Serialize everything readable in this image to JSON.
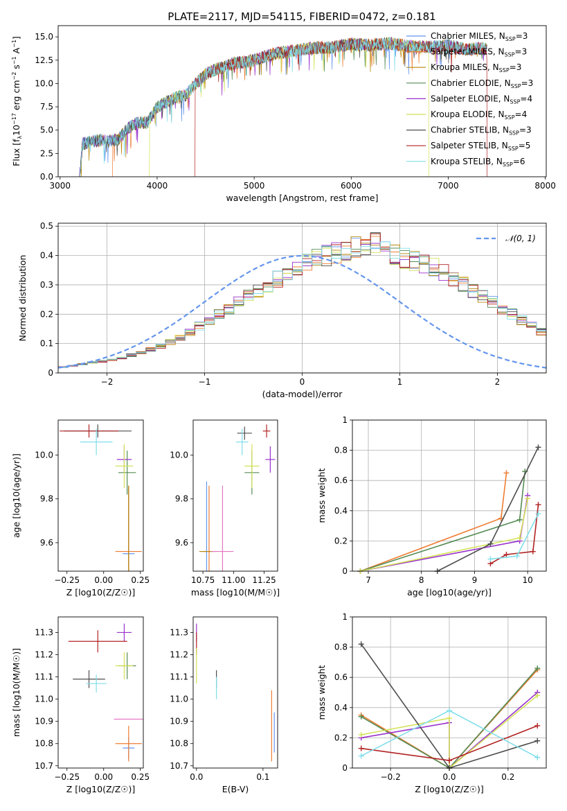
{
  "title": "PLATE=2117, MJD=54115, FIBERID=0472, z=0.181",
  "series": [
    {
      "name": "Chabrier MILES, N",
      "nssp": "3",
      "color": "#6495ed"
    },
    {
      "name": "Salpeter MILES, N",
      "nssp": "3",
      "color": "#ee7c31"
    },
    {
      "name": "Kroupa MILES, N",
      "nssp": "3",
      "color": "#b8860b"
    },
    {
      "name": "Chabrier ELODIE, N",
      "nssp": "3",
      "color": "#548b54"
    },
    {
      "name": "Salpeter ELODIE, N",
      "nssp": "4",
      "color": "#9932cc"
    },
    {
      "name": "Kroupa ELODIE, N",
      "nssp": "4",
      "color": "#d4e157"
    },
    {
      "name": "Chabrier STELIB, N",
      "nssp": "3",
      "color": "#4d4d4d"
    },
    {
      "name": "Salpeter STELIB, N",
      "nssp": "5",
      "color": "#b22222"
    },
    {
      "name": "Kroupa STELIB, N",
      "nssp": "6",
      "color": "#80deea"
    }
  ],
  "chart_data": [
    {
      "type": "line",
      "title": "PLATE=2117, MJD=54115, FIBERID=0472, z=0.181",
      "xlabel": "wavelength [Angstrom, rest frame]",
      "ylabel": "Flux [f_λ 10^-17 erg cm^-2 s^-1 A^-1]",
      "xlim": [
        2980,
        8010
      ],
      "ylim": [
        0,
        16.2
      ],
      "xticks": [
        3000,
        4000,
        5000,
        6000,
        7000,
        8000
      ],
      "yticks": [
        0.0,
        2.5,
        5.0,
        7.5,
        10.0,
        12.5,
        15.0
      ],
      "ytick_labels": [
        "0.0",
        "2.5",
        "5.0",
        "7.5",
        "10.0",
        "12.5",
        "15.0"
      ],
      "spectrum_envelope": {
        "x": [
          3200,
          3230,
          3300,
          3400,
          3500,
          3600,
          3700,
          3800,
          3900,
          4000,
          4100,
          4200,
          4300,
          4400,
          4500,
          4600,
          4700,
          4800,
          4900,
          5000,
          5200,
          5400,
          5600,
          5800,
          6000,
          6200,
          6400,
          6600,
          6800,
          7000,
          7200,
          7300,
          7400
        ],
        "y": [
          0,
          3.5,
          3.7,
          3.9,
          3.8,
          4.0,
          5.2,
          5.8,
          5.8,
          7.5,
          8.0,
          8.5,
          8.8,
          10.0,
          11.0,
          11.5,
          11.8,
          12.2,
          12.3,
          12.5,
          13.2,
          13.5,
          13.8,
          13.9,
          14.2,
          14.1,
          14.3,
          14.0,
          13.9,
          14.1,
          13.6,
          13.8,
          13.7
        ]
      },
      "series_start_wavelength": {
        "Salpeter MILES": 3540,
        "Kroupa ELODIE": 3920,
        "Salpeter STELIB": 4390
      },
      "series_end_wavelength": {
        "Kroupa ELODIE": 6800,
        "Salpeter STELIB": 7400
      }
    },
    {
      "type": "bar",
      "subtype": "step-histogram",
      "xlabel": "(data-model)/error",
      "ylabel": "Normed distribution",
      "xlim": [
        -2.5,
        2.5
      ],
      "ylim": [
        0,
        0.51
      ],
      "xticks": [
        -2,
        -1,
        0,
        1,
        2
      ],
      "xtick_labels": [
        "−2",
        "−1",
        "0",
        "1",
        "2"
      ],
      "yticks": [
        0.0,
        0.1,
        0.2,
        0.3,
        0.4,
        0.5
      ],
      "bin_width": 0.1,
      "approx_bin_values": [
        0.02,
        0.025,
        0.03,
        0.035,
        0.04,
        0.045,
        0.05,
        0.06,
        0.07,
        0.08,
        0.09,
        0.105,
        0.12,
        0.14,
        0.16,
        0.18,
        0.2,
        0.22,
        0.24,
        0.26,
        0.28,
        0.3,
        0.32,
        0.34,
        0.36,
        0.375,
        0.39,
        0.4,
        0.41,
        0.42,
        0.43,
        0.44,
        0.45,
        0.42,
        0.4,
        0.39,
        0.38,
        0.37,
        0.36,
        0.34,
        0.32,
        0.3,
        0.28,
        0.26,
        0.24,
        0.22,
        0.2,
        0.18,
        0.16,
        0.14
      ],
      "legend": "𝒩(0, 1)",
      "reference_curve": "Gaussian N(0,1)"
    },
    {
      "type": "scatter",
      "subtype": "errorbar",
      "xlabel": "Z [log10(Z/Z☉)]",
      "ylabel": "age  [log10(age/yr)]",
      "xlim": [
        -0.31,
        0.27
      ],
      "ylim": [
        9.47,
        10.16
      ],
      "xticks": [
        -0.25,
        0.0,
        0.25
      ],
      "xtick_labels": [
        "−0.25",
        "0.00",
        "0.25"
      ],
      "yticks": [
        9.6,
        9.8,
        10.0
      ],
      "ytick_labels": [
        "9.6",
        "9.8",
        "10.0"
      ],
      "points": [
        {
          "series": "Chabrier MILES",
          "x": 0.17,
          "y": 9.55,
          "xerr": 0.04,
          "yerr": 0.3
        },
        {
          "series": "Salpeter MILES",
          "x": 0.17,
          "y": 9.56,
          "xerr": 0.09,
          "yerr": 0.3
        },
        {
          "series": "Kroupa MILES",
          "x": 0.17,
          "y": 9.56,
          "xerr": 0.0,
          "yerr": 0.3
        },
        {
          "series": "Chabrier ELODIE",
          "x": 0.16,
          "y": 9.92,
          "xerr": 0.06,
          "yerr": 0.1
        },
        {
          "series": "Salpeter ELODIE",
          "x": 0.14,
          "y": 9.98,
          "xerr": 0.05,
          "yerr": 0.06
        },
        {
          "series": "Kroupa ELODIE",
          "x": 0.14,
          "y": 9.95,
          "xerr": 0.06,
          "yerr": 0.1
        },
        {
          "series": "Chabrier STELIB",
          "x": -0.04,
          "y": 10.11,
          "xerr": 0.23,
          "yerr": 0.03
        },
        {
          "series": "Salpeter STELIB",
          "x": -0.1,
          "y": 10.11,
          "xerr": 0.2,
          "yerr": 0.03
        },
        {
          "series": "Kroupa STELIB",
          "x": -0.05,
          "y": 10.06,
          "xerr": 0.11,
          "yerr": 0.06
        }
      ]
    },
    {
      "type": "scatter",
      "subtype": "errorbar",
      "xlabel": "mass [log10(M/M☉)]",
      "ylabel": "",
      "xlim": [
        10.67,
        11.36
      ],
      "ylim": [
        9.47,
        10.16
      ],
      "xticks": [
        10.75,
        11.0,
        11.25
      ],
      "xtick_labels": [
        "10.75",
        "11.00",
        "11.25"
      ],
      "yticks": [
        9.6,
        9.8,
        10.0
      ],
      "ytick_labels": [
        "9.6",
        "9.8",
        "10.0"
      ],
      "points": [
        {
          "series": "Chabrier MILES",
          "x": 10.78,
          "y": 9.56,
          "xerr": 0.03,
          "yerr": 0.32
        },
        {
          "series": "Salpeter MILES",
          "x": 10.8,
          "y": 9.56,
          "xerr": 0.06,
          "yerr": 0.3
        },
        {
          "series": "Kroupa MILES",
          "x": 10.78,
          "y": 9.56,
          "xerr": 0.06,
          "yerr": 0.0
        },
        {
          "series": "Chabrier ELODIE",
          "x": 11.15,
          "y": 9.92,
          "xerr": 0.06,
          "yerr": 0.1
        },
        {
          "series": "Salpeter ELODIE",
          "x": 11.3,
          "y": 9.98,
          "xerr": 0.04,
          "yerr": 0.06
        },
        {
          "series": "Kroupa ELODIE",
          "x": 11.15,
          "y": 9.95,
          "xerr": 0.06,
          "yerr": 0.1
        },
        {
          "series": "Chabrier STELIB",
          "x": 11.09,
          "y": 10.1,
          "xerr": 0.06,
          "yerr": 0.03
        },
        {
          "series": "Salpeter STELIB",
          "x": 11.27,
          "y": 10.11,
          "xerr": 0.03,
          "yerr": 0.03
        },
        {
          "series": "Kroupa STELIB",
          "x": 11.07,
          "y": 10.06,
          "xerr": 0.05,
          "yerr": 0.06
        },
        {
          "series": "pink",
          "x": 10.91,
          "y": 9.56,
          "xerr": 0.09,
          "yerr": 0.3
        }
      ]
    },
    {
      "type": "line",
      "xlabel": "age  [log10(age/yr)]",
      "ylabel": "mass weight",
      "xlim": [
        6.7,
        10.35
      ],
      "ylim": [
        0,
        1.0
      ],
      "xticks": [
        7,
        8,
        9,
        10
      ],
      "yticks": [
        0.0,
        0.2,
        0.4,
        0.6,
        0.8,
        1.0
      ],
      "lines": [
        {
          "series": "Salpeter MILES",
          "x": [
            6.85,
            9.5,
            9.6
          ],
          "y": [
            0.0,
            0.35,
            0.65
          ]
        },
        {
          "series": "Chabrier ELODIE",
          "x": [
            6.85,
            9.85,
            9.95
          ],
          "y": [
            0.0,
            0.34,
            0.66
          ]
        },
        {
          "series": "Salpeter ELODIE",
          "x": [
            6.85,
            9.85,
            10.0
          ],
          "y": [
            0.0,
            0.2,
            0.5
          ]
        },
        {
          "series": "Kroupa ELODIE",
          "x": [
            6.85,
            9.85,
            10.0
          ],
          "y": [
            0.0,
            0.22,
            0.48
          ]
        },
        {
          "series": "Chabrier STELIB",
          "x": [
            8.3,
            9.3,
            10.2
          ],
          "y": [
            0.0,
            0.18,
            0.82
          ]
        },
        {
          "series": "Salpeter STELIB",
          "x": [
            9.3,
            9.6,
            10.1,
            10.2
          ],
          "y": [
            0.05,
            0.11,
            0.13,
            0.44
          ]
        },
        {
          "series": "Kroupa STELIB",
          "x": [
            9.3,
            9.8,
            10.2
          ],
          "y": [
            0.08,
            0.1,
            0.38
          ]
        }
      ]
    },
    {
      "type": "scatter",
      "subtype": "errorbar",
      "xlabel": "Z [log10(Z/Z☉)]",
      "ylabel": "mass [log10(M/M☉)]",
      "xlim": [
        -0.31,
        0.27
      ],
      "ylim": [
        10.69,
        11.37
      ],
      "xticks": [
        -0.25,
        0.0,
        0.25
      ],
      "xtick_labels": [
        "−0.25",
        "0.00",
        "0.25"
      ],
      "yticks": [
        10.7,
        10.8,
        10.9,
        11.0,
        11.1,
        11.2,
        11.3
      ],
      "ytick_labels": [
        "10.7",
        "10.8",
        "10.9",
        "11.0",
        "11.1",
        "11.2",
        "11.3"
      ],
      "points": [
        {
          "series": "Chabrier MILES",
          "x": 0.17,
          "y": 10.78,
          "xerr": 0.04,
          "yerr": 0.05
        },
        {
          "series": "Salpeter MILES",
          "x": 0.17,
          "y": 10.8,
          "xerr": 0.09,
          "yerr": 0.08
        },
        {
          "series": "pink",
          "x": 0.17,
          "y": 10.91,
          "xerr": 0.1,
          "yerr": 0.0
        },
        {
          "series": "Chabrier ELODIE",
          "x": 0.16,
          "y": 11.15,
          "xerr": 0.06,
          "yerr": 0.06
        },
        {
          "series": "Salpeter ELODIE",
          "x": 0.14,
          "y": 11.3,
          "xerr": 0.05,
          "yerr": 0.04
        },
        {
          "series": "Kroupa ELODIE",
          "x": 0.14,
          "y": 11.15,
          "xerr": 0.06,
          "yerr": 0.06
        },
        {
          "series": "Chabrier STELIB",
          "x": -0.1,
          "y": 11.09,
          "xerr": 0.11,
          "yerr": 0.04
        },
        {
          "series": "Salpeter STELIB",
          "x": -0.04,
          "y": 11.26,
          "xerr": 0.2,
          "yerr": 0.05
        },
        {
          "series": "Kroupa STELIB",
          "x": -0.05,
          "y": 11.07,
          "xerr": 0.07,
          "yerr": 0.04
        }
      ]
    },
    {
      "type": "scatter",
      "subtype": "errorbar",
      "xlabel": "E(B-V)",
      "ylabel": "",
      "xlim": [
        -0.005,
        0.122
      ],
      "ylim": [
        10.69,
        11.37
      ],
      "xticks": [
        0.0,
        0.1
      ],
      "xtick_labels": [
        "0.0",
        "0.1"
      ],
      "yticks": [
        10.7,
        10.8,
        10.9,
        11.0,
        11.1,
        11.2,
        11.3
      ],
      "ytick_labels": [
        "10.7",
        "10.8",
        "10.9",
        "11.0",
        "11.1",
        "11.2",
        "11.3"
      ],
      "points": [
        {
          "series": "Salpeter ELODIE",
          "x": 0.0,
          "y": 11.3,
          "xerr": 0.0,
          "yerr": 0.04
        },
        {
          "series": "Salpeter STELIB",
          "x": 0.0,
          "y": 11.25,
          "xerr": 0.0,
          "yerr": 0.05
        },
        {
          "series": "Kroupa ELODIE",
          "x": 0.0,
          "y": 11.15,
          "xerr": 0.0,
          "yerr": 0.08
        },
        {
          "series": "Chabrier STELIB",
          "x": 0.03,
          "y": 11.09,
          "xerr": 0.0,
          "yerr": 0.04
        },
        {
          "series": "Kroupa STELIB",
          "x": 0.03,
          "y": 11.05,
          "xerr": 0.0,
          "yerr": 0.05
        },
        {
          "series": "Salpeter MILES",
          "x": 0.113,
          "y": 10.88,
          "xerr": 0.0,
          "yerr": 0.16
        },
        {
          "series": "Chabrier MILES",
          "x": 0.117,
          "y": 10.85,
          "xerr": 0.0,
          "yerr": 0.09
        }
      ]
    },
    {
      "type": "line",
      "xlabel": "Z [log10(Z/Z☉)]",
      "ylabel": "mass weight",
      "xlim": [
        -0.33,
        0.33
      ],
      "ylim": [
        0,
        1.0
      ],
      "xticks": [
        -0.2,
        0.0,
        0.2
      ],
      "xtick_labels": [
        "−0.2",
        "0.0",
        "0.2"
      ],
      "yticks": [
        0.0,
        0.2,
        0.4,
        0.6,
        0.8,
        1.0
      ],
      "lines": [
        {
          "series": "Salpeter MILES",
          "x": [
            -0.3,
            0.0,
            0.3
          ],
          "y": [
            0.35,
            0.0,
            0.65
          ]
        },
        {
          "series": "Chabrier ELODIE",
          "x": [
            -0.3,
            0.0,
            0.3
          ],
          "y": [
            0.34,
            0.0,
            0.66
          ]
        },
        {
          "series": "Salpeter ELODIE",
          "x": [
            -0.3,
            0.0,
            0.0,
            0.3
          ],
          "y": [
            0.2,
            0.3,
            0.0,
            0.5
          ]
        },
        {
          "series": "Kroupa ELODIE",
          "x": [
            -0.3,
            0.0,
            0.0,
            0.3
          ],
          "y": [
            0.22,
            0.33,
            0.0,
            0.48
          ]
        },
        {
          "series": "Chabrier STELIB",
          "x": [
            -0.3,
            0.0,
            0.3
          ],
          "y": [
            0.82,
            0.0,
            0.18
          ]
        },
        {
          "series": "Salpeter STELIB",
          "x": [
            -0.3,
            0.0,
            0.3
          ],
          "y": [
            0.13,
            0.05,
            0.28
          ]
        },
        {
          "series": "Kroupa STELIB",
          "x": [
            -0.3,
            0.0,
            0.3
          ],
          "y": [
            0.08,
            0.38,
            0.07
          ]
        }
      ]
    }
  ]
}
